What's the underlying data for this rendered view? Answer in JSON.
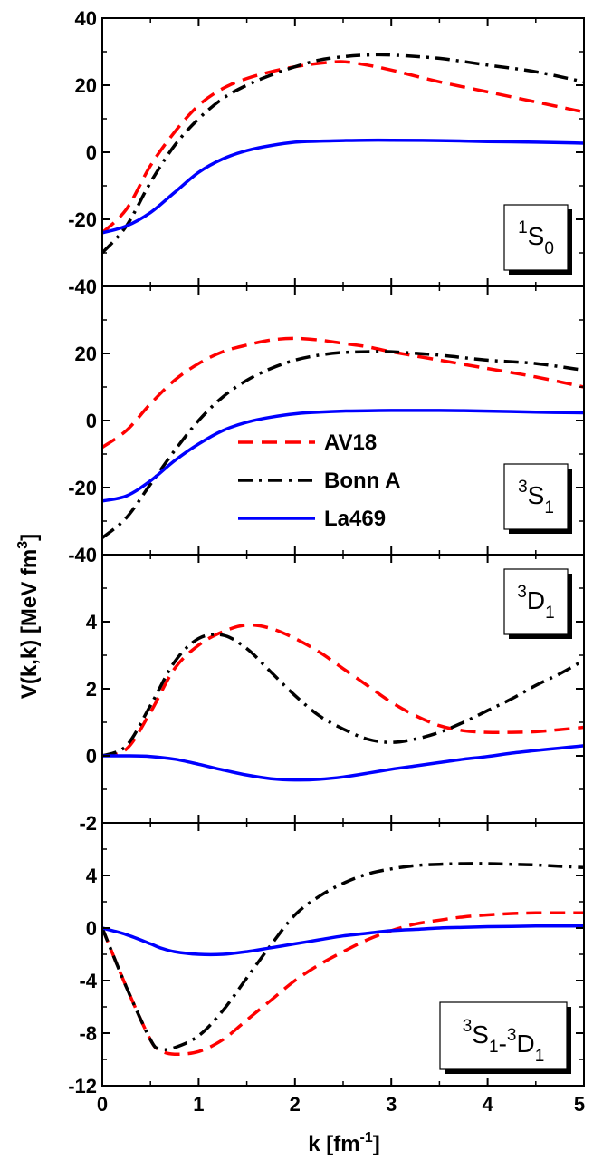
{
  "xlabel": "k [fm-1]",
  "xlabel_parts": {
    "main": "k [fm",
    "sup": "-1",
    "close": "]"
  },
  "ylabel": "V(k,k) [MeV fm3]",
  "ylabel_parts": {
    "main": "V(k,k) [MeV fm",
    "sup": "3",
    "close": "]"
  },
  "x_ticks": [
    "0",
    "1",
    "2",
    "3",
    "4",
    "5"
  ],
  "legend": [
    "AV18",
    "Bonn A",
    "La469"
  ],
  "colors": {
    "AV18": "#ff0000",
    "Bonn A": "#000000",
    "La469": "#0000ff"
  },
  "chart_data": [
    {
      "type": "line",
      "panel_label": "1S0",
      "label_parts": [
        {
          "sup": "1",
          "base": "S",
          "sub": "0"
        }
      ],
      "xlim": [
        0,
        5
      ],
      "ylim": [
        -40,
        40
      ],
      "yticks": [
        -40,
        -20,
        0,
        20,
        40
      ],
      "ytick_labels": [
        "-40",
        "-20",
        "0",
        "20",
        "40"
      ],
      "x": [
        0,
        0.25,
        0.5,
        0.75,
        1.0,
        1.25,
        1.5,
        1.75,
        2.0,
        2.25,
        2.5,
        2.75,
        3.0,
        3.5,
        4.0,
        4.5,
        5.0
      ],
      "series": [
        {
          "name": "AV18",
          "values": [
            -24,
            -17,
            -4,
            6,
            14,
            19,
            22,
            24,
            25.5,
            26.5,
            27,
            26,
            24.5,
            21,
            18,
            15,
            12
          ]
        },
        {
          "name": "Bonn A",
          "values": [
            -30,
            -22,
            -9,
            2,
            10,
            16,
            20,
            23,
            25.5,
            27.5,
            28.5,
            29,
            29,
            28,
            26,
            24,
            21
          ]
        },
        {
          "name": "La469",
          "values": [
            -24,
            -22,
            -18,
            -12,
            -6,
            -2,
            0.5,
            2,
            3,
            3.3,
            3.5,
            3.6,
            3.6,
            3.5,
            3.2,
            3.0,
            2.7
          ]
        }
      ]
    },
    {
      "type": "line",
      "panel_label": "3S1",
      "label_parts": [
        {
          "sup": "3",
          "base": "S",
          "sub": "1"
        }
      ],
      "xlim": [
        0,
        5
      ],
      "ylim": [
        -40,
        40
      ],
      "yticks": [
        -40,
        -20,
        0,
        20,
        40
      ],
      "ytick_labels": [
        "-40",
        "-20",
        "0",
        "20",
        ""
      ],
      "x": [
        0,
        0.25,
        0.5,
        0.75,
        1.0,
        1.25,
        1.5,
        1.75,
        2.0,
        2.25,
        2.5,
        2.75,
        3.0,
        3.5,
        4.0,
        4.5,
        5.0
      ],
      "series": [
        {
          "name": "AV18",
          "values": [
            -8,
            -3,
            5,
            12,
            17,
            20.5,
            22.5,
            24,
            24.5,
            24,
            23,
            22,
            20.5,
            18,
            15.5,
            13,
            10
          ]
        },
        {
          "name": "Bonn A",
          "values": [
            -35,
            -29,
            -19,
            -9,
            0,
            7,
            12,
            15.5,
            18,
            19.5,
            20.3,
            20.5,
            20.5,
            19.5,
            18,
            17,
            15
          ]
        },
        {
          "name": "La469",
          "values": [
            -24,
            -22.5,
            -18,
            -12,
            -7,
            -3,
            -0.5,
            1,
            2,
            2.5,
            2.8,
            2.9,
            3,
            3,
            2.8,
            2.5,
            2.3
          ]
        }
      ]
    },
    {
      "type": "line",
      "panel_label": "3D1",
      "label_parts": [
        {
          "sup": "3",
          "base": "D",
          "sub": "1"
        }
      ],
      "xlim": [
        0,
        5
      ],
      "ylim": [
        -2,
        6
      ],
      "yticks": [
        -2,
        0,
        2,
        4,
        6
      ],
      "ytick_labels": [
        "-2",
        "0",
        "2",
        "4",
        ""
      ],
      "x": [
        0,
        0.25,
        0.5,
        0.75,
        1.0,
        1.25,
        1.5,
        1.75,
        2.0,
        2.25,
        2.5,
        2.75,
        3.0,
        3.25,
        3.5,
        3.75,
        4.0,
        4.25,
        4.5,
        4.75,
        5.0
      ],
      "series": [
        {
          "name": "AV18",
          "values": [
            0,
            0.2,
            1.3,
            2.6,
            3.3,
            3.7,
            3.9,
            3.8,
            3.5,
            3.1,
            2.6,
            2.1,
            1.6,
            1.2,
            0.9,
            0.75,
            0.7,
            0.7,
            0.72,
            0.78,
            0.85
          ]
        },
        {
          "name": "Bonn A",
          "values": [
            0,
            0.3,
            1.5,
            2.8,
            3.5,
            3.6,
            3.2,
            2.5,
            1.8,
            1.2,
            0.8,
            0.5,
            0.4,
            0.5,
            0.7,
            1.0,
            1.35,
            1.7,
            2.1,
            2.45,
            2.85
          ]
        },
        {
          "name": "La469",
          "values": [
            0,
            0,
            -0.02,
            -0.1,
            -0.25,
            -0.42,
            -0.57,
            -0.68,
            -0.72,
            -0.7,
            -0.63,
            -0.52,
            -0.4,
            -0.3,
            -0.2,
            -0.1,
            -0.02,
            0.08,
            0.16,
            0.23,
            0.3
          ]
        }
      ]
    },
    {
      "type": "line",
      "panel_label": "3S1-3D1",
      "label_parts": [
        {
          "sup": "3",
          "base": "S",
          "sub": "1"
        },
        {
          "sep": "-"
        },
        {
          "sup": "3",
          "base": "D",
          "sub": "1"
        }
      ],
      "xlim": [
        0,
        5
      ],
      "ylim": [
        -12,
        8
      ],
      "yticks": [
        -12,
        -8,
        -4,
        0,
        4,
        8
      ],
      "ytick_labels": [
        "-12",
        "-8",
        "-4",
        "0",
        "4",
        ""
      ],
      "x": [
        0,
        0.25,
        0.5,
        0.6,
        0.75,
        1.0,
        1.25,
        1.5,
        1.75,
        2.0,
        2.25,
        2.5,
        2.75,
        3.0,
        3.25,
        3.5,
        3.75,
        4.0,
        4.25,
        4.5,
        4.75,
        5.0
      ],
      "series": [
        {
          "name": "AV18",
          "values": [
            0,
            -4.5,
            -8.5,
            -9.3,
            -9.6,
            -9.4,
            -8.5,
            -7.0,
            -5.5,
            -4.0,
            -2.8,
            -1.8,
            -0.9,
            -0.2,
            0.3,
            0.6,
            0.85,
            1.0,
            1.1,
            1.15,
            1.15,
            1.15
          ]
        },
        {
          "name": "Bonn A",
          "values": [
            0,
            -4.5,
            -8.5,
            -9.2,
            -9.1,
            -8.2,
            -6.3,
            -3.8,
            -1.3,
            1.0,
            2.4,
            3.4,
            4.1,
            4.5,
            4.75,
            4.85,
            4.9,
            4.9,
            4.85,
            4.8,
            4.7,
            4.6
          ]
        },
        {
          "name": "La469",
          "values": [
            0,
            -0.5,
            -1.2,
            -1.5,
            -1.8,
            -2.0,
            -2.0,
            -1.8,
            -1.5,
            -1.2,
            -0.9,
            -0.6,
            -0.4,
            -0.2,
            -0.1,
            0,
            0.05,
            0.1,
            0.12,
            0.15,
            0.15,
            0.15
          ]
        }
      ]
    }
  ]
}
